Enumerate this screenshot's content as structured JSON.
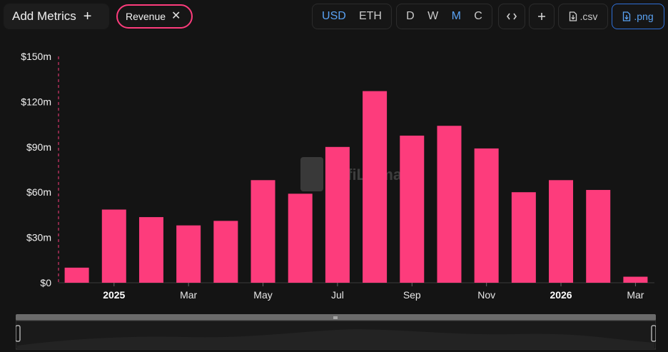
{
  "toolbar": {
    "add_metrics_label": "Add Metrics",
    "add_icon": "plus-icon",
    "metric_chip": {
      "label": "Revenue",
      "remove_icon": "close-icon",
      "color": "#fd3c7c"
    },
    "currency_options": [
      "USD",
      "ETH"
    ],
    "currency_selected": "USD",
    "period_options": [
      "D",
      "W",
      "M",
      "C"
    ],
    "period_selected": "M",
    "embed_icon": "code-icon",
    "add_chart_icon": "plus-icon",
    "csv_label": ".csv",
    "png_label": ".png",
    "download_icon": "file-download-icon",
    "accent_color": "#5aa2f3"
  },
  "chart_data": {
    "type": "bar",
    "title": "",
    "xlabel": "",
    "ylabel": "",
    "bar_color": "#fd3c7c",
    "x": [
      "2024-12",
      "2025-01",
      "2025-02",
      "2025-03",
      "2025-04",
      "2025-05",
      "2025-06",
      "2025-07",
      "2025-08",
      "2025-09",
      "2025-10",
      "2025-11",
      "2025-12",
      "2026-01",
      "2026-02",
      "2026-03"
    ],
    "series": [
      {
        "values": [
          10,
          48.5,
          43.5,
          38,
          41,
          68,
          59,
          90,
          127,
          97.5,
          104,
          89,
          60,
          68,
          61.5,
          4
        ]
      }
    ],
    "y_ticks": [
      0,
      30,
      60,
      90,
      120,
      150
    ],
    "y_tick_labels": [
      "$0",
      "$30m",
      "$60m",
      "$90m",
      "$120m",
      "$150m"
    ],
    "ylim": [
      0,
      150
    ],
    "x_tick_labels": [
      {
        "at": "2025-01",
        "label": "2025",
        "bold": true
      },
      {
        "at": "2025-03",
        "label": "Mar",
        "bold": false
      },
      {
        "at": "2025-05",
        "label": "May",
        "bold": false
      },
      {
        "at": "2025-07",
        "label": "Jul",
        "bold": false
      },
      {
        "at": "2025-09",
        "label": "Sep",
        "bold": false
      },
      {
        "at": "2025-11",
        "label": "Nov",
        "bold": false
      },
      {
        "at": "2026-01",
        "label": "2026",
        "bold": true
      },
      {
        "at": "2026-03",
        "label": "Mar",
        "bold": false
      }
    ],
    "grid": false,
    "legend": "none",
    "watermark": "DefiLlama"
  },
  "range_slider": {
    "handle_icon": "drag-handle-icon"
  }
}
